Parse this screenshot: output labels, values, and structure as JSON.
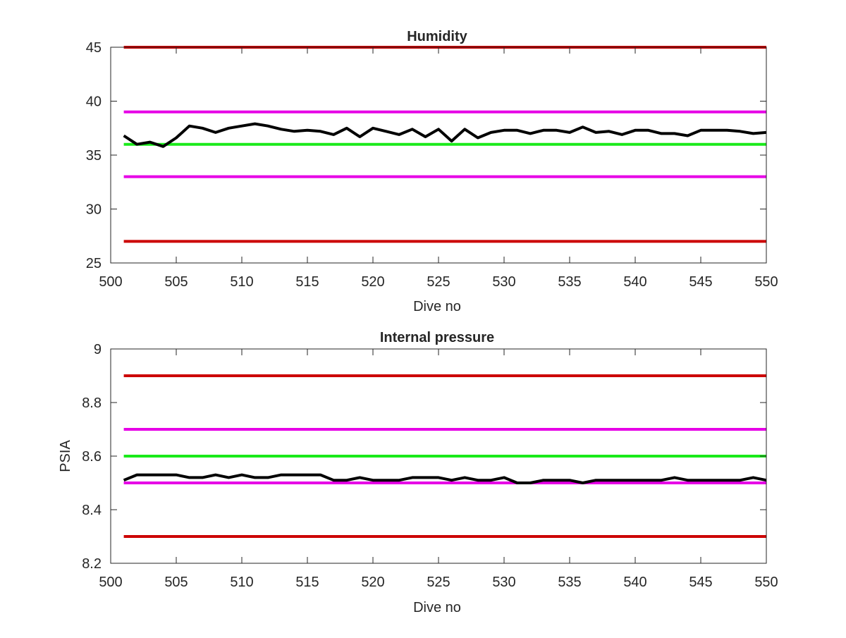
{
  "chart_data": [
    {
      "type": "line",
      "title": "Humidity",
      "xlabel": "Dive no",
      "ylabel": "",
      "xlim": [
        500,
        550
      ],
      "ylim": [
        25,
        45
      ],
      "xticks": [
        500,
        505,
        510,
        515,
        520,
        525,
        530,
        535,
        540,
        545,
        550
      ],
      "xtick_labels": [
        "500",
        "505",
        "510",
        "515",
        "520",
        "525",
        "530",
        "535",
        "540",
        "545",
        "550"
      ],
      "yticks": [
        25,
        30,
        35,
        40,
        45
      ],
      "ytick_labels": [
        "25",
        "30",
        "35",
        "40",
        "45"
      ],
      "grid": false,
      "reference_lines": [
        {
          "y": 45,
          "color": "#cc0000"
        },
        {
          "y": 39,
          "color": "#e600e6"
        },
        {
          "y": 36,
          "color": "#1aea1a"
        },
        {
          "y": 33,
          "color": "#e600e6"
        },
        {
          "y": 27,
          "color": "#cc0000"
        }
      ],
      "series": [
        {
          "color": "#000000",
          "x": [
            501,
            502,
            503,
            504,
            505,
            506,
            507,
            508,
            509,
            510,
            511,
            512,
            513,
            514,
            515,
            516,
            517,
            518,
            519,
            520,
            521,
            522,
            523,
            524,
            525,
            526,
            527,
            528,
            529,
            530,
            531,
            532,
            533,
            534,
            535,
            536,
            537,
            538,
            539,
            540,
            541,
            542,
            543,
            544,
            545,
            546,
            547,
            548,
            549,
            550
          ],
          "values": [
            36.8,
            36.0,
            36.2,
            35.8,
            36.6,
            37.7,
            37.5,
            37.1,
            37.5,
            37.7,
            37.9,
            37.7,
            37.4,
            37.2,
            37.3,
            37.2,
            36.9,
            37.5,
            36.7,
            37.5,
            37.2,
            36.9,
            37.4,
            36.7,
            37.4,
            36.3,
            37.4,
            36.6,
            37.1,
            37.3,
            37.3,
            37.0,
            37.3,
            37.3,
            37.1,
            37.6,
            37.1,
            37.2,
            36.9,
            37.3,
            37.3,
            37.0,
            37.0,
            36.8,
            37.3,
            37.3,
            37.3,
            37.2,
            37.0,
            37.1
          ]
        }
      ]
    },
    {
      "type": "line",
      "title": "Internal pressure",
      "xlabel": "Dive no",
      "ylabel": "PSIA",
      "xlim": [
        500,
        550
      ],
      "ylim": [
        8.2,
        9.0
      ],
      "xticks": [
        500,
        505,
        510,
        515,
        520,
        525,
        530,
        535,
        540,
        545,
        550
      ],
      "xtick_labels": [
        "500",
        "505",
        "510",
        "515",
        "520",
        "525",
        "530",
        "535",
        "540",
        "545",
        "550"
      ],
      "yticks": [
        8.2,
        8.4,
        8.6,
        8.8,
        9.0
      ],
      "ytick_labels": [
        "8.2",
        "8.4",
        "8.6",
        "8.8",
        "9"
      ],
      "grid": false,
      "reference_lines": [
        {
          "y": 8.9,
          "color": "#cc0000"
        },
        {
          "y": 8.7,
          "color": "#e600e6"
        },
        {
          "y": 8.6,
          "color": "#1aea1a"
        },
        {
          "y": 8.5,
          "color": "#e600e6"
        },
        {
          "y": 8.3,
          "color": "#cc0000"
        }
      ],
      "series": [
        {
          "color": "#000000",
          "x": [
            501,
            502,
            503,
            504,
            505,
            506,
            507,
            508,
            509,
            510,
            511,
            512,
            513,
            514,
            515,
            516,
            517,
            518,
            519,
            520,
            521,
            522,
            523,
            524,
            525,
            526,
            527,
            528,
            529,
            530,
            531,
            532,
            533,
            534,
            535,
            536,
            537,
            538,
            539,
            540,
            541,
            542,
            543,
            544,
            545,
            546,
            547,
            548,
            549,
            550
          ],
          "values": [
            8.51,
            8.53,
            8.53,
            8.53,
            8.53,
            8.52,
            8.52,
            8.53,
            8.52,
            8.53,
            8.52,
            8.52,
            8.53,
            8.53,
            8.53,
            8.53,
            8.51,
            8.51,
            8.52,
            8.51,
            8.51,
            8.51,
            8.52,
            8.52,
            8.52,
            8.51,
            8.52,
            8.51,
            8.51,
            8.52,
            8.5,
            8.5,
            8.51,
            8.51,
            8.51,
            8.5,
            8.51,
            8.51,
            8.51,
            8.51,
            8.51,
            8.51,
            8.52,
            8.51,
            8.51,
            8.51,
            8.51,
            8.51,
            8.52,
            8.51
          ]
        }
      ]
    }
  ]
}
